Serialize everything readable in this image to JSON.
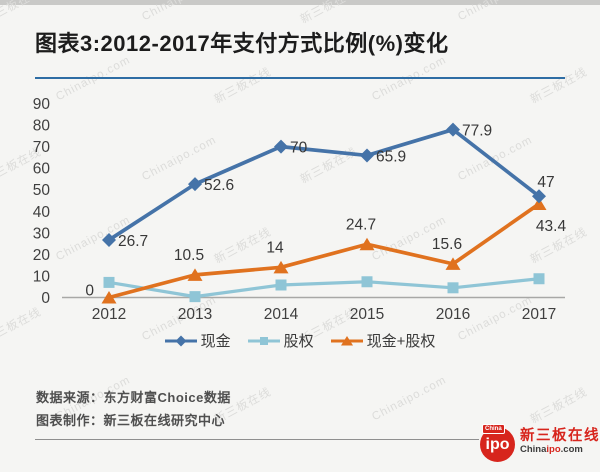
{
  "title": "图表3:2012-2017年支付方式比例(%)变化",
  "watermarks": [
    "新三板在线",
    "Chinaipo.com"
  ],
  "chart_data": {
    "type": "line",
    "title": "图表3:2012-2017年支付方式比例(%)变化",
    "categories": [
      "2012",
      "2013",
      "2014",
      "2015",
      "2016",
      "2017"
    ],
    "series": [
      {
        "id": "cash",
        "name": "现金",
        "color": "#4573a8",
        "marker": "diamond",
        "values": [
          26.7,
          52.6,
          70,
          65.9,
          77.9,
          47
        ],
        "labels": [
          "26.7",
          "52.6",
          "70",
          "65.9",
          "77.9",
          "47"
        ],
        "label_pos": [
          "right",
          "right",
          "right",
          "right",
          "right",
          "above"
        ]
      },
      {
        "id": "equity",
        "name": "股权",
        "color": "#8fc5d6",
        "marker": "square",
        "values": [
          7,
          0.4,
          5.8,
          7.3,
          4.5,
          8.7
        ],
        "labels": [
          "",
          "",
          "",
          "",
          "",
          ""
        ],
        "label_pos": [
          "none",
          "none",
          "none",
          "none",
          "none",
          "none"
        ]
      },
      {
        "id": "cash-plus-equity",
        "name": "现金+股权",
        "color": "#e0721f",
        "marker": "triangle",
        "values": [
          0,
          10.5,
          14,
          24.7,
          15.6,
          43.4
        ],
        "labels": [
          "0",
          "10.5",
          "14",
          "24.7",
          "15.6",
          "43.4"
        ],
        "label_pos": [
          "left",
          "above-left",
          "above-left",
          "above-left",
          "above-left",
          "below-right"
        ]
      }
    ],
    "ylim": [
      0,
      90
    ],
    "yticks": [
      0,
      10,
      20,
      30,
      40,
      50,
      60,
      70,
      80,
      90
    ],
    "grid": false,
    "legend_position": "bottom"
  },
  "footer": {
    "source": "数据来源：东方财富Choice数据",
    "maker": "图表制作：新三板在线研究中心"
  },
  "logo": {
    "flag": "China",
    "circle_text": "ipo",
    "brand": "新三板在线",
    "site_prefix": "China",
    "site_mid": "ipo",
    "site_suffix": ".com"
  },
  "colors": {
    "accent_blue": "#2e6da4",
    "logo_red": "#d7251d",
    "axis_line": "#a8a8a6",
    "watermark": "#dcdcda"
  }
}
